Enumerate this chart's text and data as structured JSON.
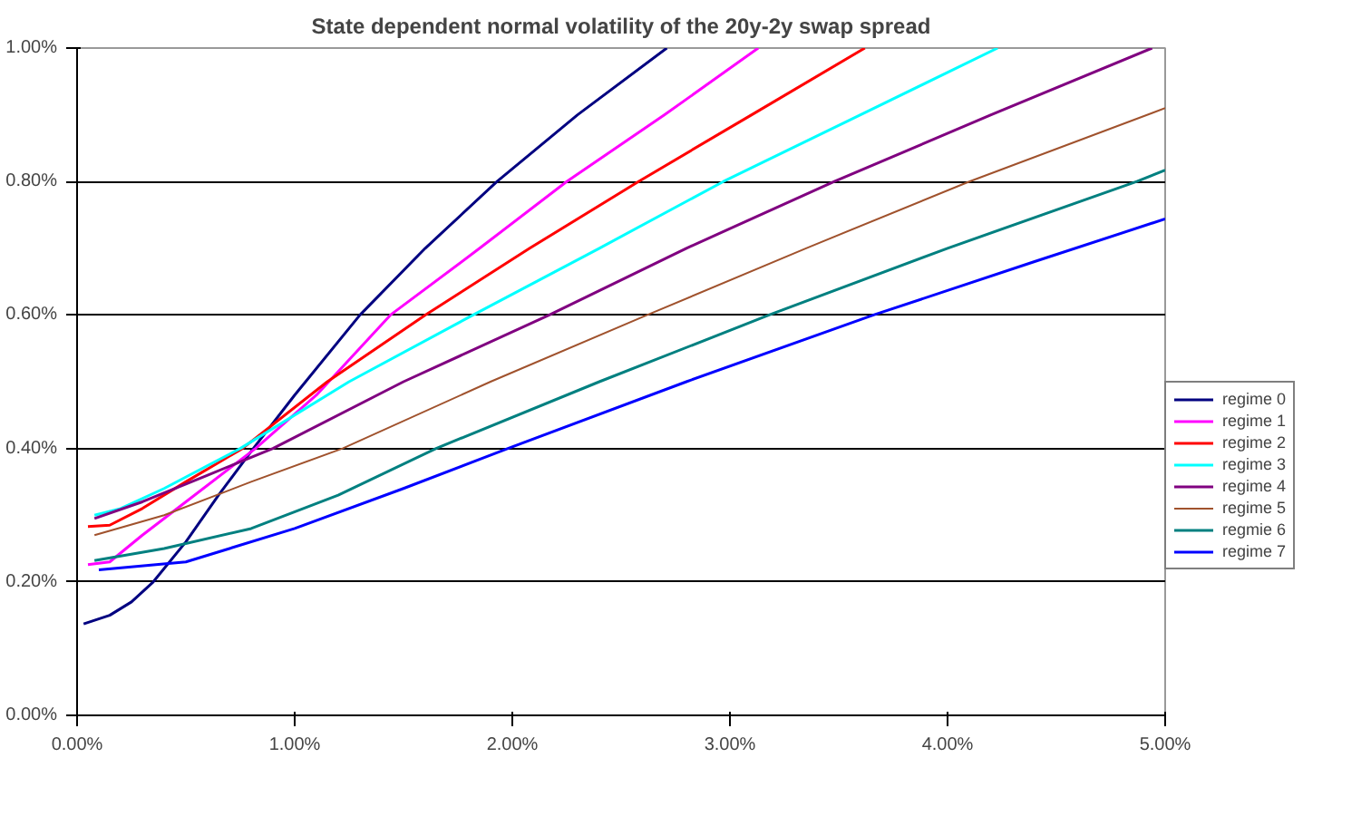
{
  "chart_data": {
    "type": "line",
    "title": "State dependent normal volatility of the 20y-2y swap spread",
    "xlim": [
      0,
      5
    ],
    "ylim": [
      0,
      1
    ],
    "xticks": [
      {
        "value": 0,
        "label": "0.00%"
      },
      {
        "value": 1,
        "label": "1.00%"
      },
      {
        "value": 2,
        "label": "2.00%"
      },
      {
        "value": 3,
        "label": "3.00%"
      },
      {
        "value": 4,
        "label": "4.00%"
      },
      {
        "value": 5,
        "label": "5.00%"
      }
    ],
    "yticks": [
      {
        "value": 0,
        "label": "0.00%"
      },
      {
        "value": 0.2,
        "label": "0.20%"
      },
      {
        "value": 0.4,
        "label": "0.40%"
      },
      {
        "value": 0.6,
        "label": "0.60%"
      },
      {
        "value": 0.8,
        "label": "0.80%"
      },
      {
        "value": 1,
        "label": "1.00%"
      }
    ],
    "grid": "y",
    "legend": "right",
    "marker": "none",
    "line_style": "solid",
    "series": [
      {
        "name": "regime 0",
        "color": "#000080",
        "x": [
          0.03,
          0.15,
          0.25,
          0.35,
          0.5,
          0.65,
          0.81,
          1.0,
          1.3,
          1.6,
          1.93,
          2.3,
          2.71
        ],
        "values": [
          0.137,
          0.15,
          0.17,
          0.2,
          0.26,
          0.33,
          0.4,
          0.48,
          0.6,
          0.7,
          0.8,
          0.9,
          1.0
        ]
      },
      {
        "name": "regime 1",
        "color": "#ff00ff",
        "x": [
          0.05,
          0.15,
          0.3,
          0.5,
          0.82,
          1.1,
          1.44,
          1.85,
          2.25,
          2.7,
          3.13
        ],
        "values": [
          0.226,
          0.23,
          0.27,
          0.32,
          0.4,
          0.48,
          0.6,
          0.7,
          0.8,
          0.9,
          1.0
        ]
      },
      {
        "name": "regime 2",
        "color": "#ff0000",
        "x": [
          0.05,
          0.15,
          0.3,
          0.5,
          0.76,
          1.15,
          1.6,
          2.08,
          2.58,
          3.1,
          3.62
        ],
        "values": [
          0.283,
          0.285,
          0.31,
          0.35,
          0.4,
          0.5,
          0.6,
          0.7,
          0.8,
          0.9,
          1.0
        ]
      },
      {
        "name": "regime 3",
        "color": "#00ffff",
        "x": [
          0.08,
          0.2,
          0.4,
          0.75,
          1.25,
          1.82,
          2.4,
          2.97,
          3.6,
          4.23
        ],
        "values": [
          0.3,
          0.31,
          0.34,
          0.4,
          0.5,
          0.6,
          0.7,
          0.8,
          0.9,
          1.0
        ]
      },
      {
        "name": "regime 4",
        "color": "#800080",
        "x": [
          0.08,
          0.3,
          0.6,
          0.9,
          1.5,
          2.17,
          2.8,
          3.48,
          4.2,
          4.94
        ],
        "values": [
          0.295,
          0.32,
          0.36,
          0.4,
          0.5,
          0.6,
          0.7,
          0.8,
          0.9,
          1.0
        ]
      },
      {
        "name": "regime 5",
        "color": "#a0522d",
        "x": [
          0.08,
          0.4,
          0.8,
          1.22,
          1.9,
          2.62,
          3.35,
          4.1,
          5.0
        ],
        "values": [
          0.27,
          0.3,
          0.35,
          0.4,
          0.5,
          0.6,
          0.7,
          0.8,
          0.91
        ]
      },
      {
        "name": "regmie 6",
        "color": "#008080",
        "x": [
          0.08,
          0.4,
          0.8,
          1.2,
          1.65,
          2.4,
          3.18,
          4.0,
          4.87,
          5.0
        ],
        "values": [
          0.232,
          0.25,
          0.28,
          0.33,
          0.4,
          0.5,
          0.6,
          0.7,
          0.8,
          0.817
        ]
      },
      {
        "name": "regime 7",
        "color": "#0000ff",
        "x": [
          0.1,
          0.5,
          1.0,
          1.5,
          1.98,
          2.8,
          3.66,
          4.4,
          5.0
        ],
        "values": [
          0.218,
          0.23,
          0.28,
          0.34,
          0.4,
          0.5,
          0.6,
          0.68,
          0.744
        ]
      }
    ]
  }
}
